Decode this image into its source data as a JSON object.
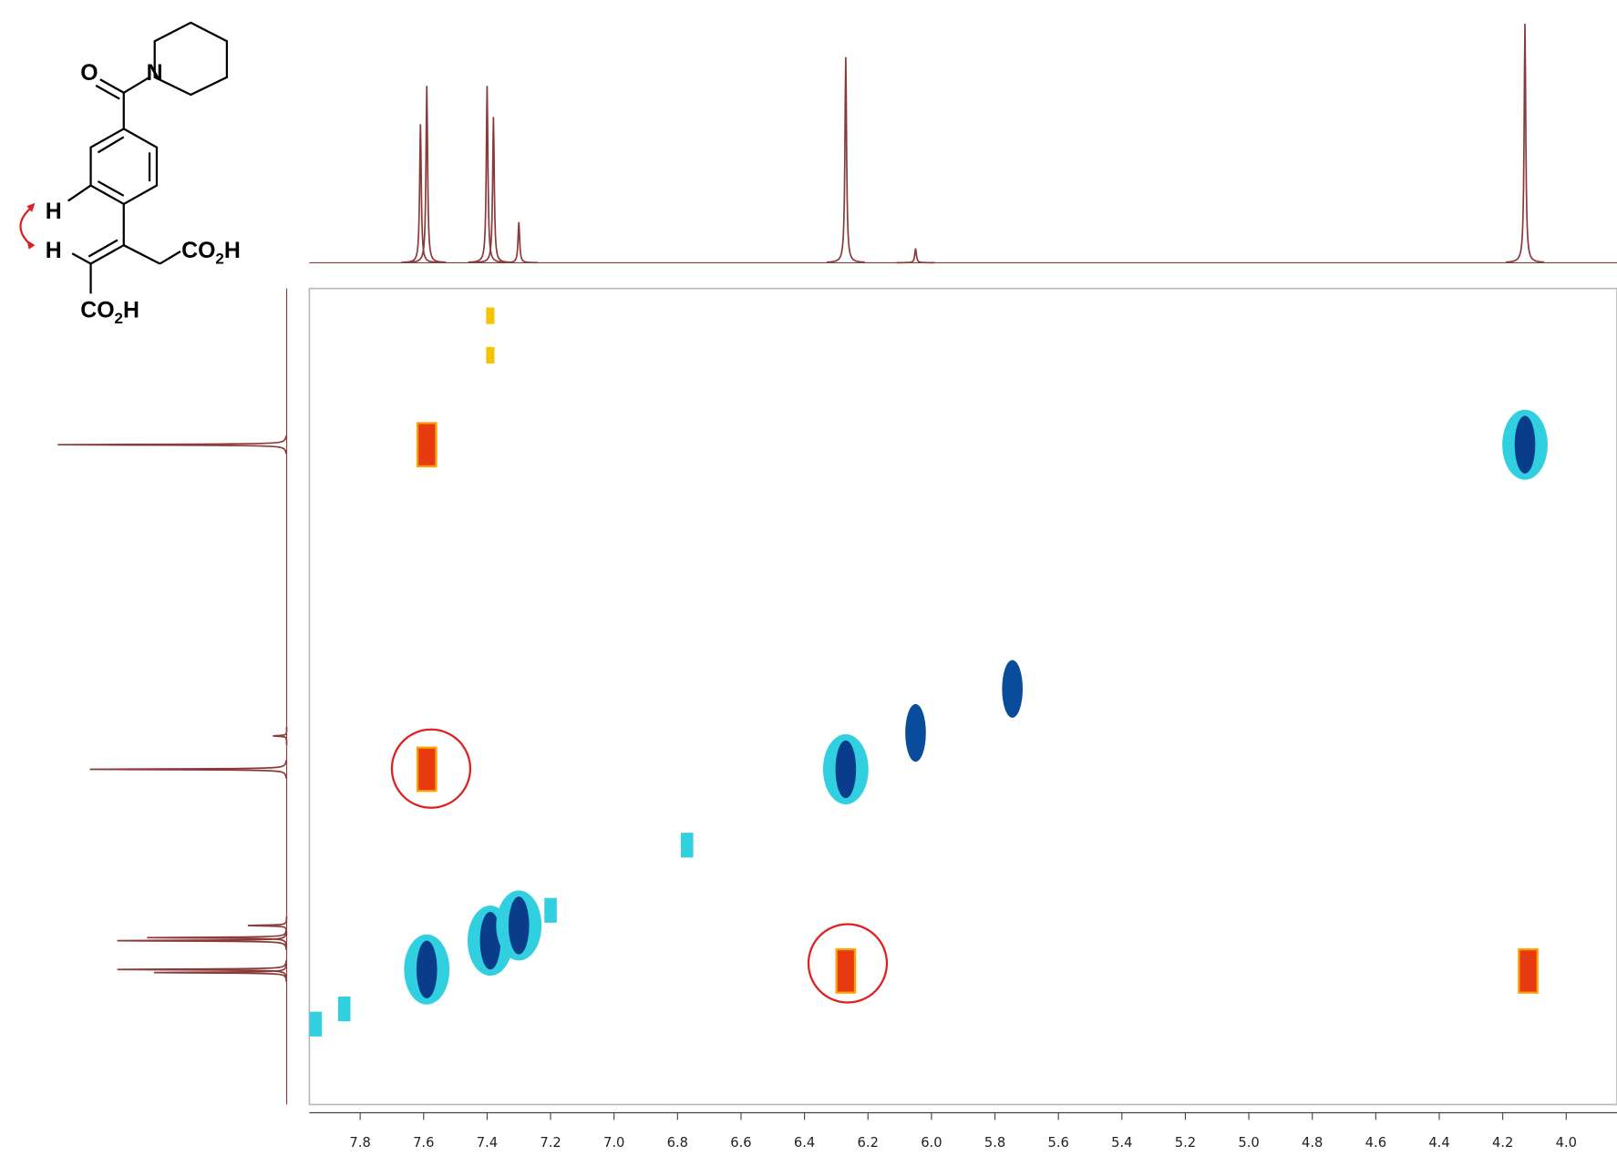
{
  "chart_data": {
    "type": "scatter",
    "xlim": [
      7.96,
      3.84
    ],
    "ylim": [
      3.1,
      8.48
    ],
    "xticks": [
      7.8,
      7.6,
      7.4,
      7.2,
      {
        "value": 7,
        "label": "7.0"
      },
      6.8,
      6.6,
      6.4,
      6.2,
      {
        "value": 6,
        "label": "6.0"
      },
      5.8,
      5.6,
      5.4,
      5.2,
      {
        "value": 5,
        "label": "5.0"
      },
      4.8,
      4.6,
      4.4,
      4.2,
      {
        "value": 4,
        "label": "4.0"
      }
    ],
    "x": [
      7.59,
      4.13,
      7.39,
      7.39,
      7.59,
      6.27,
      6.05,
      5.745,
      6.27,
      4.12,
      7.59,
      7.39,
      7.3,
      7.2,
      7.94,
      7.85,
      6.77
    ],
    "values": [
      4.13,
      4.13,
      3.28,
      3.54,
      6.27,
      6.27,
      6.03,
      5.74,
      7.6,
      7.6,
      7.59,
      7.4,
      7.3,
      7.2,
      7.95,
      7.85,
      6.77
    ],
    "colors": [
      "#e83a10",
      "#0a3c8c",
      "#f5c400",
      "#f5c400",
      "#e83a10",
      "#0a3c8c",
      "#0a4c9c",
      "#0a4c9c",
      "#e83a10",
      "#e83a10",
      "#0a3c8c",
      "#0a3c8c",
      "#0a3c8c",
      "#30d0e0",
      "#30d0e0",
      "#30d0e0",
      "#30d0e0"
    ],
    "trace_color": "#8b3a3a",
    "projection": {
      "x": [
        7.61,
        7.59,
        7.4,
        7.38,
        7.3,
        6.27,
        6.05,
        4.13
      ],
      "values": [
        0.58,
        0.74,
        0.74,
        0.61,
        0.17,
        0.86,
        0.06,
        1.0
      ]
    }
  },
  "molecule": {
    "atoms": [
      "O",
      "N",
      "H",
      "H"
    ],
    "groups": [
      {
        "main": "CO",
        "sub": "2",
        "end": "H"
      },
      {
        "main": "CO",
        "sub": "2",
        "end": "H"
      }
    ]
  }
}
